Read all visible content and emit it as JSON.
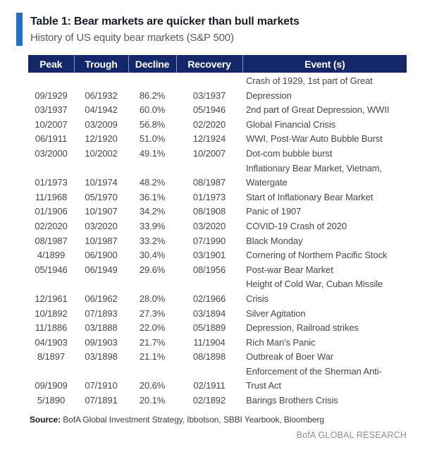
{
  "colors": {
    "header_bg": "#142869",
    "accent_bar": "#1e70d0",
    "header_sep": "#8193c9"
  },
  "chart_data": {
    "type": "table",
    "title": "Table 1: Bear markets are quicker than bull markets",
    "subtitle": "History of US equity bear markets (S&P 500)",
    "columns": [
      "Peak",
      "Trough",
      "Decline",
      "Recovery",
      "Event (s)"
    ],
    "rows": [
      {
        "peak": "09/1929",
        "trough": "06/1932",
        "decline": "86.2%",
        "recovery": "03/1937",
        "event": "Crash of 1929, 1st part of Great\nDepression"
      },
      {
        "peak": "03/1937",
        "trough": "04/1942",
        "decline": "60.0%",
        "recovery": "05/1946",
        "event": "2nd part of Great Depression, WWII"
      },
      {
        "peak": "10/2007",
        "trough": "03/2009",
        "decline": "56.8%",
        "recovery": "02/2020",
        "event": "Global Financial Crisis"
      },
      {
        "peak": "06/1911",
        "trough": "12/1920",
        "decline": "51.0%",
        "recovery": "12/1924",
        "event": "WWI, Post-War Auto Bubble Burst"
      },
      {
        "peak": "03/2000",
        "trough": "10/2002",
        "decline": "49.1%",
        "recovery": "10/2007",
        "event": "Dot-com bubble burst"
      },
      {
        "peak": "01/1973",
        "trough": "10/1974",
        "decline": "48.2%",
        "recovery": "08/1987",
        "event": "Inflationary Bear Market, Vietnam,\nWatergate"
      },
      {
        "peak": "11/1968",
        "trough": "05/1970",
        "decline": "36.1%",
        "recovery": "01/1973",
        "event": "Start of Inflationary Bear Market"
      },
      {
        "peak": "01/1906",
        "trough": "10/1907",
        "decline": "34.2%",
        "recovery": "08/1908",
        "event": "Panic of 1907"
      },
      {
        "peak": "02/2020",
        "trough": "03/2020",
        "decline": "33.9%",
        "recovery": "03/2020",
        "event": "COVID-19 Crash of 2020"
      },
      {
        "peak": "08/1987",
        "trough": "10/1987",
        "decline": "33.2%",
        "recovery": "07/1990",
        "event": "Black Monday"
      },
      {
        "peak": "4/1899",
        "trough": "06/1900",
        "decline": "30.4%",
        "recovery": "03/1901",
        "event": "Cornering of Northern Pacific Stock"
      },
      {
        "peak": "05/1946",
        "trough": "06/1949",
        "decline": "29.6%",
        "recovery": "08/1956",
        "event": "Post-war Bear Market"
      },
      {
        "peak": "12/1961",
        "trough": "06/1962",
        "decline": "28.0%",
        "recovery": "02/1966",
        "event": "Height of Cold War, Cuban Missile\nCrisis"
      },
      {
        "peak": "10/1892",
        "trough": "07/1893",
        "decline": "27.3%",
        "recovery": "03/1894",
        "event": "Silver Agitation"
      },
      {
        "peak": "11/1886",
        "trough": "03/1888",
        "decline": "22.0%",
        "recovery": "05/1889",
        "event": "Depression, Railroad strikes"
      },
      {
        "peak": "04/1903",
        "trough": "09/1903",
        "decline": "21.7%",
        "recovery": "11/1904",
        "event": "Rich Man's Panic"
      },
      {
        "peak": "8/1897",
        "trough": "03/1898",
        "decline": "21.1%",
        "recovery": "08/1898",
        "event": "Outbreak of Boer War"
      },
      {
        "peak": "09/1909",
        "trough": "07/1910",
        "decline": "20.6%",
        "recovery": "02/1911",
        "event": "Enforcement of the Sherman Anti-\nTrust Act"
      },
      {
        "peak": "5/1890",
        "trough": "07/1891",
        "decline": "20.1%",
        "recovery": "02/1892",
        "event": "Barings Brothers Crisis"
      }
    ]
  },
  "footer": {
    "source_label": "Source:",
    "source_text": "BofA Global Investment Strategy, Ibbotson, SBBI Yearbook, Bloomberg",
    "brand": "BofA GLOBAL RESEARCH"
  }
}
